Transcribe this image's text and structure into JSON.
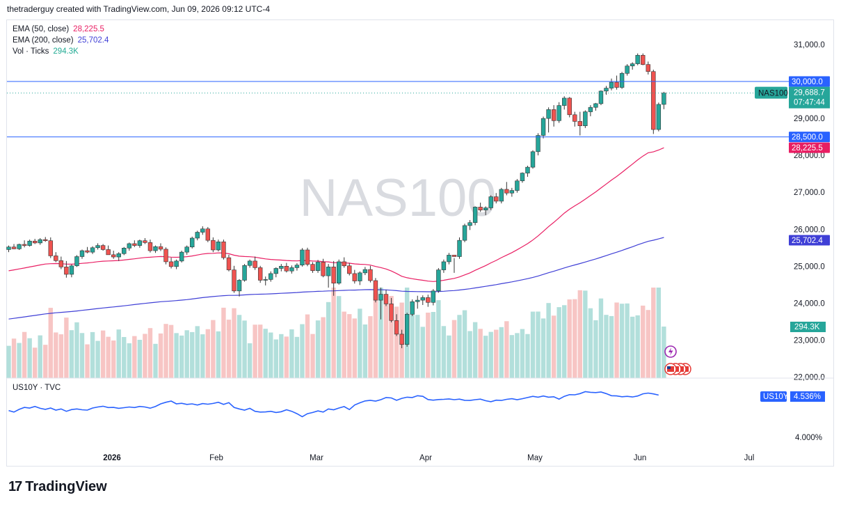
{
  "header": {
    "text": "thetraderguy created with TradingView.com, Jun 09, 2026 09:12 UTC-4"
  },
  "legend": [
    {
      "label": "EMA (50, close)",
      "value": "28,225.5",
      "color": "#e91e63"
    },
    {
      "label": "EMA (200, close)",
      "value": "25,702.4",
      "color": "#3f3fd6"
    },
    {
      "label": "Vol · Ticks",
      "value": "294.3K",
      "color": "#22ab94"
    }
  ],
  "sub_legend": {
    "label": "US10Y · TVC"
  },
  "watermark": "NAS100",
  "price_labels": {
    "hline_top": "30,000.0",
    "hline_bottom": "28,500.0",
    "symbol": "NAS100",
    "last": "29,688.7",
    "countdown": "07:47:44",
    "ema50": "28,225.5",
    "ema200": "25,702.4",
    "volume": "294.3K",
    "us10y_symbol": "US10Y",
    "us10y_value": "4.536%",
    "us10y_tick": "4.000%"
  },
  "brand": {
    "name": "TradingView",
    "mark": "17"
  },
  "colors": {
    "up": "#26a69a",
    "down": "#ef5350",
    "vol_up": "#b2dfdb",
    "vol_down": "#f7c5c4",
    "ema50": "#e91e63",
    "ema200": "#3f3fd6",
    "hline": "#2962ff",
    "us10y": "#2962ff"
  },
  "chart_data": [
    {
      "type": "candlestick",
      "title": "NAS100",
      "y_axis": {
        "ticks": [
          "31,000.0",
          "30,000.0",
          "29,000.0",
          "28,000.0",
          "27,000.0",
          "26,000.0",
          "25,000.0",
          "24,000.0",
          "23,000.0",
          "22,000.0"
        ],
        "range": [
          21950,
          31450
        ]
      },
      "x_axis": {
        "ticks": [
          "2026",
          "Feb",
          "Mar",
          "Apr",
          "May",
          "Jun",
          "Jul"
        ]
      },
      "horizontal_lines": [
        30000,
        28500
      ],
      "last_value": 29688.7,
      "candles_ohlc": [
        [
          25450,
          25560,
          25380,
          25520
        ],
        [
          25520,
          25600,
          25460,
          25470
        ],
        [
          25470,
          25610,
          25440,
          25590
        ],
        [
          25590,
          25700,
          25510,
          25560
        ],
        [
          25560,
          25720,
          25530,
          25680
        ],
        [
          25680,
          25740,
          25600,
          25630
        ],
        [
          25630,
          25760,
          25580,
          25720
        ],
        [
          25720,
          25790,
          25660,
          25690
        ],
        [
          25690,
          25780,
          25220,
          25280
        ],
        [
          25280,
          25380,
          25110,
          25150
        ],
        [
          25150,
          25260,
          24920,
          24980
        ],
        [
          24980,
          25140,
          24690,
          24780
        ],
        [
          24780,
          25050,
          24700,
          25010
        ],
        [
          25010,
          25300,
          24980,
          25260
        ],
        [
          25260,
          25450,
          25200,
          25420
        ],
        [
          25420,
          25520,
          25350,
          25380
        ],
        [
          25380,
          25540,
          25330,
          25500
        ],
        [
          25500,
          25620,
          25450,
          25560
        ],
        [
          25560,
          25600,
          25420,
          25450
        ],
        [
          25450,
          25560,
          25380,
          25310
        ],
        [
          25310,
          25420,
          25200,
          25250
        ],
        [
          25250,
          25380,
          25140,
          25340
        ],
        [
          25340,
          25520,
          25300,
          25490
        ],
        [
          25490,
          25640,
          25420,
          25610
        ],
        [
          25610,
          25700,
          25520,
          25560
        ],
        [
          25560,
          25720,
          25500,
          25690
        ],
        [
          25690,
          25760,
          25600,
          25640
        ],
        [
          25640,
          25720,
          25370,
          25420
        ],
        [
          25420,
          25560,
          25360,
          25530
        ],
        [
          25530,
          25620,
          25410,
          25460
        ],
        [
          25460,
          25510,
          25050,
          25120
        ],
        [
          25120,
          25230,
          24940,
          24990
        ],
        [
          24990,
          25180,
          24920,
          25140
        ],
        [
          25140,
          25420,
          25100,
          25380
        ],
        [
          25380,
          25560,
          25310,
          25520
        ],
        [
          25520,
          25800,
          25480,
          25760
        ],
        [
          25760,
          25960,
          25700,
          25920
        ],
        [
          25920,
          26080,
          25850,
          26010
        ],
        [
          26010,
          26060,
          25650,
          25700
        ],
        [
          25700,
          25780,
          25380,
          25440
        ],
        [
          25440,
          25720,
          25400,
          25660
        ],
        [
          25660,
          25720,
          25180,
          25230
        ],
        [
          25230,
          25310,
          24860,
          24900
        ],
        [
          24900,
          25010,
          24280,
          24330
        ],
        [
          24330,
          24650,
          24180,
          24620
        ],
        [
          24620,
          25060,
          24580,
          25020
        ],
        [
          25020,
          25180,
          24960,
          25140
        ],
        [
          25140,
          25260,
          24900,
          24960
        ],
        [
          24960,
          25010,
          24550,
          24620
        ],
        [
          24620,
          24720,
          24480,
          24640
        ],
        [
          24640,
          24860,
          24580,
          24800
        ],
        [
          24800,
          24970,
          24700,
          24940
        ],
        [
          24940,
          25060,
          24860,
          25000
        ],
        [
          25000,
          25090,
          24830,
          24870
        ],
        [
          24870,
          25020,
          24800,
          24960
        ],
        [
          24960,
          25080,
          24880,
          25030
        ],
        [
          25030,
          25490,
          24990,
          25440
        ],
        [
          25440,
          25500,
          25000,
          25050
        ],
        [
          25050,
          25110,
          24820,
          24880
        ],
        [
          24880,
          25170,
          24820,
          25110
        ],
        [
          25110,
          25200,
          24700,
          24740
        ],
        [
          24740,
          25060,
          24420,
          24980
        ],
        [
          24980,
          25140,
          24200,
          24540
        ],
        [
          24540,
          25180,
          24500,
          25120
        ],
        [
          25120,
          25240,
          24960,
          25010
        ],
        [
          25010,
          25090,
          24750,
          24800
        ],
        [
          24800,
          24900,
          24530,
          24600
        ],
        [
          24600,
          24860,
          24490,
          24820
        ],
        [
          24820,
          24980,
          24760,
          24910
        ],
        [
          24910,
          25010,
          24560,
          24610
        ],
        [
          24610,
          24680,
          24020,
          24080
        ],
        [
          24080,
          24420,
          23560,
          24240
        ],
        [
          24240,
          24360,
          23920,
          23980
        ],
        [
          23980,
          24140,
          23480,
          23530
        ],
        [
          23530,
          23700,
          23110,
          23160
        ],
        [
          23160,
          23280,
          22780,
          22880
        ],
        [
          22880,
          23740,
          22820,
          23700
        ],
        [
          23700,
          24100,
          23650,
          24040
        ],
        [
          24040,
          24200,
          23850,
          24080
        ],
        [
          24080,
          24210,
          23950,
          24150
        ],
        [
          24150,
          24230,
          23900,
          24020
        ],
        [
          24020,
          24380,
          23940,
          24330
        ],
        [
          24330,
          24950,
          24280,
          24900
        ],
        [
          24900,
          25180,
          24820,
          25120
        ],
        [
          25120,
          25360,
          25050,
          25300
        ],
        [
          25300,
          25220,
          24820,
          25260
        ],
        [
          25260,
          25780,
          25200,
          25700
        ],
        [
          25700,
          26150,
          25650,
          26100
        ],
        [
          26100,
          26250,
          25980,
          26180
        ],
        [
          26180,
          26620,
          26110,
          26600
        ],
        [
          26600,
          26720,
          26470,
          26520
        ],
        [
          26520,
          26620,
          26380,
          26580
        ],
        [
          26580,
          26920,
          26520,
          26880
        ],
        [
          26880,
          26980,
          26700,
          26760
        ],
        [
          26760,
          27120,
          26700,
          27080
        ],
        [
          27080,
          27280,
          26920,
          26980
        ],
        [
          26980,
          27120,
          26880,
          27050
        ],
        [
          27050,
          27360,
          26990,
          27310
        ],
        [
          27310,
          27540,
          27260,
          27520
        ],
        [
          27520,
          27720,
          27420,
          27680
        ],
        [
          27680,
          28140,
          27640,
          28100
        ],
        [
          28100,
          28600,
          28000,
          28540
        ],
        [
          28540,
          29050,
          28460,
          29000
        ],
        [
          29000,
          29300,
          28620,
          29240
        ],
        [
          29240,
          29360,
          28780,
          28940
        ],
        [
          28940,
          29440,
          28880,
          29350
        ],
        [
          29350,
          29600,
          29240,
          29550
        ],
        [
          29550,
          29580,
          29030,
          29100
        ],
        [
          29100,
          29180,
          28780,
          28920
        ],
        [
          28920,
          29180,
          28540,
          28800
        ],
        [
          28800,
          29220,
          28740,
          29180
        ],
        [
          29180,
          29360,
          29060,
          29300
        ],
        [
          29300,
          29420,
          29210,
          29400
        ],
        [
          29400,
          29760,
          29360,
          29740
        ],
        [
          29740,
          29880,
          29640,
          29820
        ],
        [
          29820,
          30080,
          29760,
          29980
        ],
        [
          29980,
          30160,
          29780,
          29840
        ],
        [
          29840,
          30260,
          29800,
          30220
        ],
        [
          30220,
          30470,
          30160,
          30420
        ],
        [
          30420,
          30520,
          30320,
          30480
        ],
        [
          30480,
          30760,
          30440,
          30710
        ],
        [
          30710,
          30760,
          30440,
          30460
        ],
        [
          30460,
          30540,
          30190,
          30270
        ],
        [
          30270,
          30320,
          28580,
          28700
        ],
        [
          28700,
          29430,
          28650,
          29380
        ],
        [
          29380,
          29720,
          29250,
          29688.7
        ]
      ],
      "volume_up_down": "derived from candle direction",
      "volume_last": "294.3K",
      "ema50_last": 28225.5,
      "ema200_last": 25702.4
    },
    {
      "type": "line",
      "title": "US10Y · TVC",
      "y_ticks": [
        "4.000%"
      ],
      "last_value": 4.536,
      "values": [
        4.34,
        4.32,
        4.355,
        4.38,
        4.372,
        4.392,
        4.368,
        4.355,
        4.372,
        4.345,
        4.36,
        4.33,
        4.352,
        4.36,
        4.35,
        4.345,
        4.372,
        4.385,
        4.395,
        4.378,
        4.38,
        4.368,
        4.376,
        4.385,
        4.378,
        4.392,
        4.385,
        4.37,
        4.392,
        4.425,
        4.445,
        4.46,
        4.425,
        4.432,
        4.418,
        4.425,
        4.41,
        4.428,
        4.42,
        4.43,
        4.445,
        4.418,
        4.44,
        4.38,
        4.36,
        4.345,
        4.368,
        4.33,
        4.32,
        4.322,
        4.33,
        4.315,
        4.325,
        4.35,
        4.33,
        4.3,
        4.262,
        4.3,
        4.315,
        4.335,
        4.32,
        4.36,
        4.35,
        4.372,
        4.39,
        4.352,
        4.41,
        4.438,
        4.462,
        4.47,
        4.46,
        4.478,
        4.505,
        4.5,
        4.47,
        4.495,
        4.51,
        4.505,
        4.528,
        4.52,
        4.48,
        4.472,
        4.48,
        4.482,
        4.488,
        4.478,
        4.485,
        4.47,
        4.468,
        4.478,
        4.485,
        4.465,
        4.452,
        4.472,
        4.468,
        4.482,
        4.49,
        4.478,
        4.49,
        4.505,
        4.52,
        4.51,
        4.525,
        4.51,
        4.515,
        4.485,
        4.52,
        4.542,
        4.54,
        4.555,
        4.58,
        4.572,
        4.568,
        4.575,
        4.555,
        4.528,
        4.526,
        4.515,
        4.52,
        4.512,
        4.525,
        4.552,
        4.562,
        4.551,
        4.536
      ]
    }
  ]
}
